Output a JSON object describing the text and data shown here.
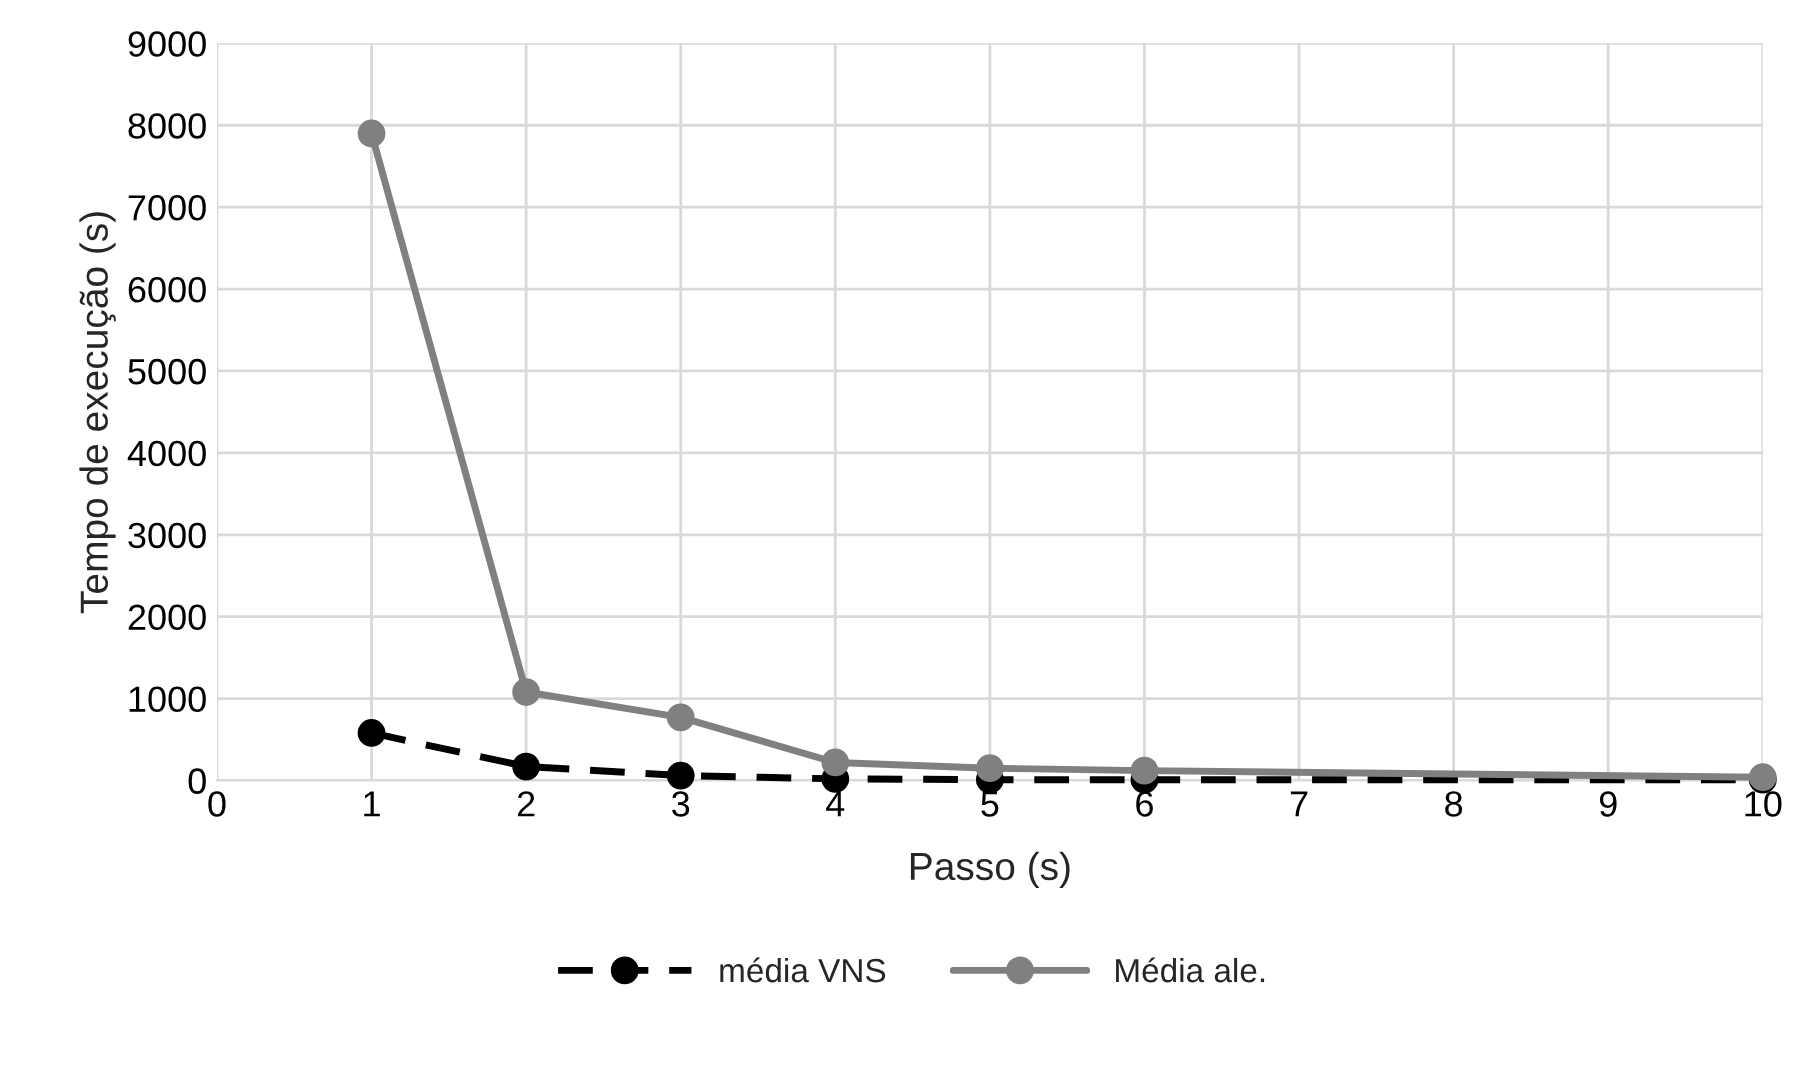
{
  "chart_data": {
    "type": "line",
    "xlabel": "Passo (s)",
    "ylabel": "Tempo de execução (s)",
    "x": [
      1,
      2,
      3,
      4,
      5,
      6,
      10
    ],
    "series": [
      {
        "name": "média VNS",
        "color": "#000000",
        "line_style": "dashed",
        "values": [
          580,
          170,
          60,
          20,
          10,
          10,
          10
        ]
      },
      {
        "name": "Média ale.",
        "color": "#808080",
        "line_style": "solid",
        "values": [
          7900,
          1080,
          770,
          220,
          150,
          120,
          40
        ]
      }
    ],
    "xlim": [
      0,
      10
    ],
    "xticks": [
      0,
      1,
      2,
      3,
      4,
      5,
      6,
      7,
      8,
      9,
      10
    ],
    "ylim": [
      0,
      9000
    ],
    "yticks": [
      0,
      1000,
      2000,
      3000,
      4000,
      5000,
      6000,
      7000,
      8000,
      9000
    ],
    "grid": true,
    "legend": "bottom",
    "marker": "circle"
  }
}
